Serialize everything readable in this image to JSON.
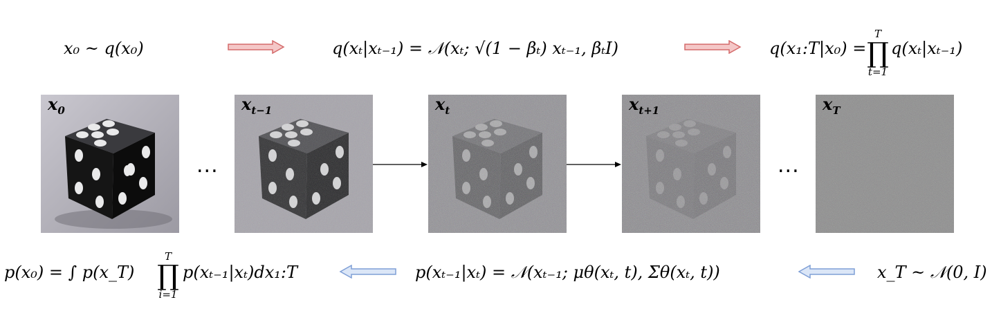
{
  "equations": {
    "forward_prior": "x₀ ~ q(x₀)",
    "forward_step": "q(xₜ|xₜ₋₁) = 𝒩(xₜ; √(1 − βₜ) xₜ₋₁, βₜI)",
    "forward_joint_lhs": "q(x₁:T|x₀) =",
    "forward_joint_rhs": "q(xₜ|xₜ₋₁)",
    "forward_prod_upper": "T",
    "forward_prod_lower": "t=1",
    "reverse_marginal_lhs": "p(x₀) = ∫ p(x_T)",
    "reverse_marginal_rhs": "p(xₜ₋₁|xₜ)dx₁:T",
    "reverse_prod_upper": "T",
    "reverse_prod_lower": "i=1",
    "reverse_step": "p(xₜ₋₁|xₜ) = 𝒩(xₜ₋₁; μθ(xₜ, t), Σθ(xₜ, t))",
    "reverse_prior": "x_T ~ 𝒩(0, I)"
  },
  "panels": [
    {
      "label": "x",
      "sub": "0",
      "noise": 0.0
    },
    {
      "label": "x",
      "sub": "t−1",
      "noise": 0.35
    },
    {
      "label": "x",
      "sub": "t",
      "noise": 0.65
    },
    {
      "label": "x",
      "sub": "t+1",
      "noise": 0.82
    },
    {
      "label": "x",
      "sub": "T",
      "noise": 1.0
    }
  ],
  "ellipsis": "...",
  "colors": {
    "forward_arrow_fill": "#f4c7c7",
    "forward_arrow_stroke": "#d46a6a",
    "reverse_arrow_fill": "#dbe6f7",
    "reverse_arrow_stroke": "#7f9fd6",
    "noise_gray": "#8a8a8a"
  }
}
